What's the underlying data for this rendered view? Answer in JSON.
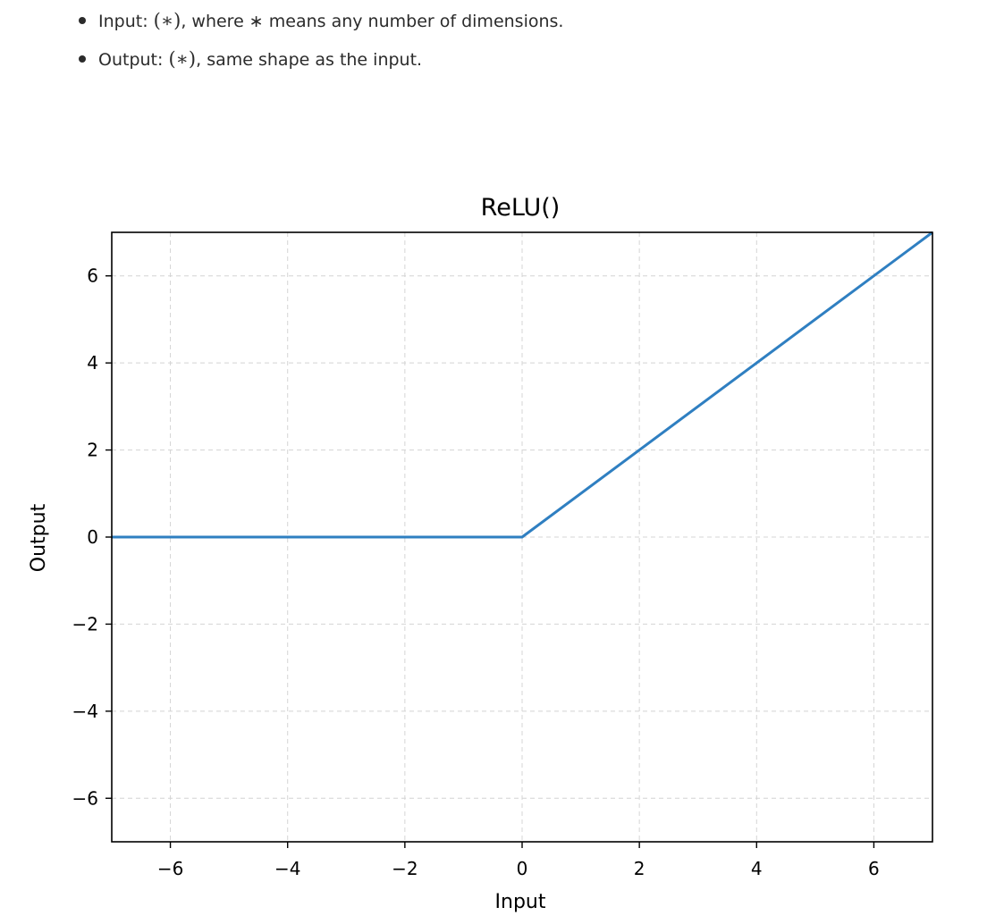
{
  "shape_list": [
    {
      "label": "Input:",
      "math": "(∗)",
      "rest": ", where ∗ means any number of dimensions."
    },
    {
      "label": "Output:",
      "math": "(∗)",
      "rest": ", same shape as the input."
    }
  ],
  "chart_data": {
    "type": "line",
    "title": "ReLU()",
    "xlabel": "Input",
    "ylabel": "Output",
    "xlim": [
      -7,
      7
    ],
    "ylim": [
      -7,
      7
    ],
    "xticks": [
      -6,
      -4,
      -2,
      0,
      2,
      4,
      6
    ],
    "yticks": [
      -6,
      -4,
      -2,
      0,
      2,
      4,
      6
    ],
    "xtick_labels": [
      "−6",
      "−4",
      "−2",
      "0",
      "2",
      "4",
      "6"
    ],
    "ytick_labels": [
      "−6",
      "−4",
      "−2",
      "0",
      "2",
      "4",
      "6"
    ],
    "grid": true,
    "series": [
      {
        "x": [
          -7,
          0,
          7
        ],
        "y": [
          0,
          0,
          7
        ],
        "color": "#2f7fc1"
      }
    ],
    "colors": {
      "line": "#2f7fc1",
      "grid": "#d4d4d4",
      "axes": "#000000"
    }
  }
}
